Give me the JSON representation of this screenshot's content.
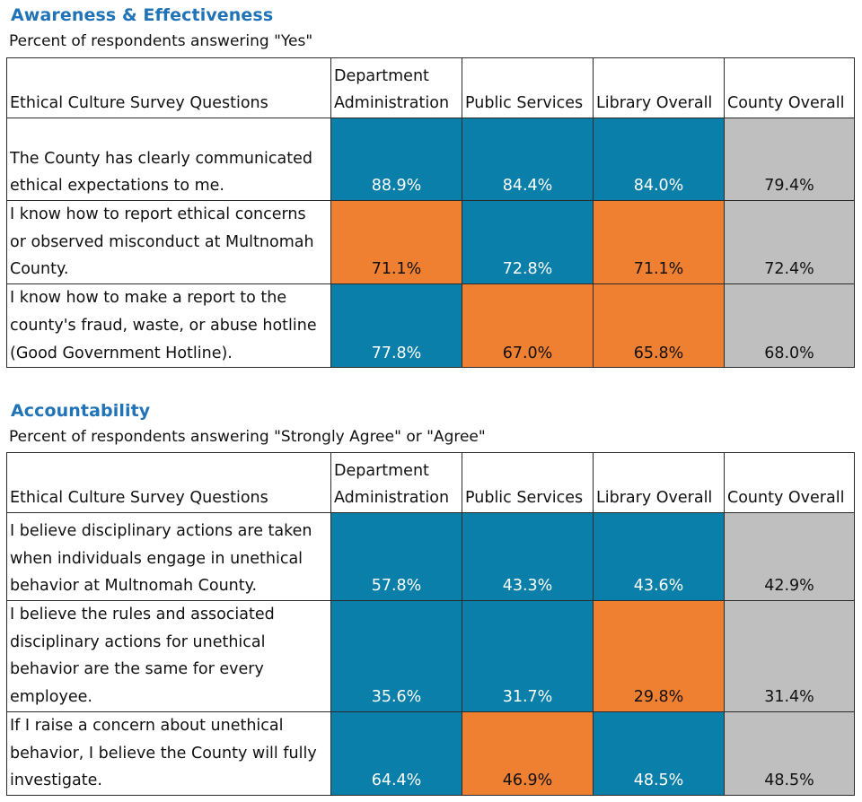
{
  "sections": [
    {
      "title": "Awareness & Effectiveness",
      "subtitle": "Percent of respondents answering \"Yes\"",
      "headers": [
        "Ethical Culture Survey Questions",
        "Department Administration",
        "Public Services",
        "Library Overall",
        "County Overall"
      ],
      "header_lines": [
        [
          "Ethical Culture Survey Questions"
        ],
        [
          "Department",
          "Administration"
        ],
        [
          "Public Services"
        ],
        [
          "Library Overall"
        ],
        [
          "County Overall"
        ]
      ],
      "rows": [
        {
          "question": "The County has clearly communicated ethical expectations to me.",
          "values": [
            "88.9%",
            "84.4%",
            "84.0%",
            "79.4%"
          ],
          "colors": [
            "blue",
            "blue",
            "blue",
            "gray"
          ]
        },
        {
          "question": "I know how to report ethical concerns or observed misconduct at Multnomah County.",
          "values": [
            "71.1%",
            "72.8%",
            "71.1%",
            "72.4%"
          ],
          "colors": [
            "orange",
            "blue",
            "orange",
            "gray"
          ]
        },
        {
          "question": "I know how to make a report to the county's fraud, waste, or abuse hotline (Good Government Hotline).",
          "values": [
            "77.8%",
            "67.0%",
            "65.8%",
            "68.0%"
          ],
          "colors": [
            "blue",
            "orange",
            "orange",
            "gray"
          ]
        }
      ]
    },
    {
      "title": "Accountability",
      "subtitle": "Percent of respondents answering \"Strongly Agree\" or \"Agree\"",
      "headers": [
        "Ethical Culture Survey Questions",
        "Department Administration",
        "Public Services",
        "Library Overall",
        "County Overall"
      ],
      "header_lines": [
        [
          "Ethical Culture Survey Questions"
        ],
        [
          "Department",
          "Administration"
        ],
        [
          "Public Services"
        ],
        [
          "Library Overall"
        ],
        [
          "County Overall"
        ]
      ],
      "rows": [
        {
          "question": "I believe disciplinary actions are taken when individuals engage in unethical behavior at Multnomah County.",
          "values": [
            "57.8%",
            "43.3%",
            "43.6%",
            "42.9%"
          ],
          "colors": [
            "blue",
            "blue",
            "blue",
            "gray"
          ]
        },
        {
          "question": "I believe the rules and associated disciplinary actions for unethical behavior are the same for every employee.",
          "values": [
            "35.6%",
            "31.7%",
            "29.8%",
            "31.4%"
          ],
          "colors": [
            "blue",
            "blue",
            "orange",
            "gray"
          ]
        },
        {
          "question": "If I raise a concern about unethical behavior, I believe the County will fully investigate.",
          "values": [
            "64.4%",
            "46.9%",
            "48.5%",
            "48.5%"
          ],
          "colors": [
            "blue",
            "orange",
            "blue",
            "gray"
          ]
        }
      ]
    }
  ],
  "colors": {
    "blue": "#0a7fa9",
    "orange": "#ef7f31",
    "gray": "#bfbfbf",
    "title": "#1f73b6"
  }
}
